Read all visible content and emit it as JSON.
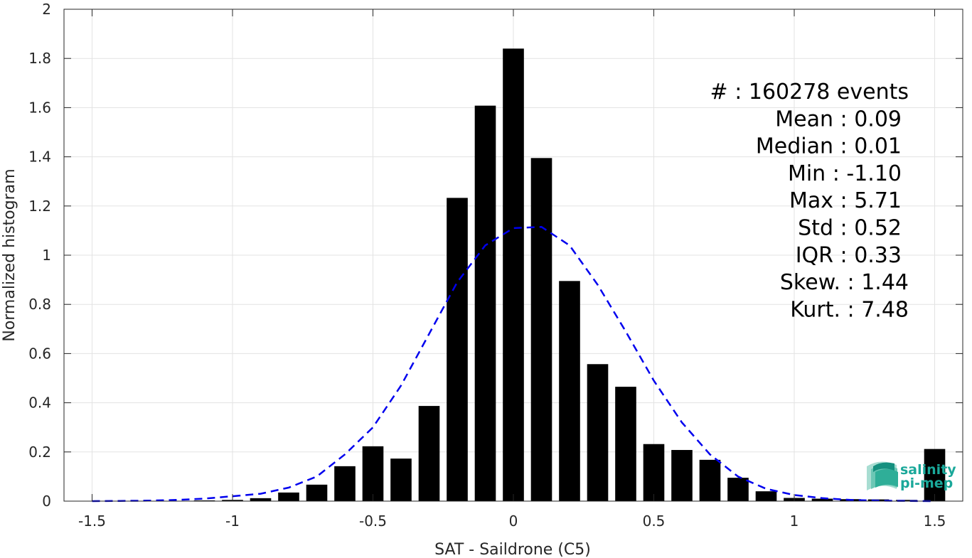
{
  "chart_data": {
    "type": "bar",
    "xlabel": "SAT - Saildrone (C5)",
    "ylabel": "Normalized histogram",
    "xlim": [
      -1.6,
      1.6
    ],
    "ylim": [
      0,
      2
    ],
    "grid": true,
    "xticks": [
      -1.5,
      -1,
      -0.5,
      0,
      0.5,
      1,
      1.5
    ],
    "xtick_labels": [
      "-1.5",
      "-1",
      "-0.5",
      "0",
      "0.5",
      "1",
      "1.5"
    ],
    "yticks": [
      0,
      0.2,
      0.4,
      0.6,
      0.8,
      1,
      1.2,
      1.4,
      1.6,
      1.8,
      2
    ],
    "ytick_labels": [
      "0",
      "0.2",
      "0.4",
      "0.6",
      "0.8",
      "1",
      "1.2",
      "1.4",
      "1.6",
      "1.8",
      "2"
    ],
    "bar_color": "#000000",
    "bins": [
      {
        "x": -1.5,
        "value": 0.0
      },
      {
        "x": -1.4,
        "value": 0.0
      },
      {
        "x": -1.3,
        "value": 0.0
      },
      {
        "x": -1.2,
        "value": 0.0
      },
      {
        "x": -1.1,
        "value": 0.003
      },
      {
        "x": -1.0,
        "value": 0.005
      },
      {
        "x": -0.9,
        "value": 0.012
      },
      {
        "x": -0.8,
        "value": 0.035
      },
      {
        "x": -0.7,
        "value": 0.067
      },
      {
        "x": -0.6,
        "value": 0.142
      },
      {
        "x": -0.5,
        "value": 0.223
      },
      {
        "x": -0.4,
        "value": 0.173
      },
      {
        "x": -0.3,
        "value": 0.387
      },
      {
        "x": -0.2,
        "value": 1.233
      },
      {
        "x": -0.1,
        "value": 1.608
      },
      {
        "x": 0.0,
        "value": 1.84
      },
      {
        "x": 0.1,
        "value": 1.395
      },
      {
        "x": 0.2,
        "value": 0.895
      },
      {
        "x": 0.3,
        "value": 0.557
      },
      {
        "x": 0.4,
        "value": 0.465
      },
      {
        "x": 0.5,
        "value": 0.232
      },
      {
        "x": 0.6,
        "value": 0.208
      },
      {
        "x": 0.7,
        "value": 0.168
      },
      {
        "x": 0.8,
        "value": 0.095
      },
      {
        "x": 0.9,
        "value": 0.04
      },
      {
        "x": 1.0,
        "value": 0.013
      },
      {
        "x": 1.1,
        "value": 0.01
      },
      {
        "x": 1.2,
        "value": 0.008
      },
      {
        "x": 1.3,
        "value": 0.007
      },
      {
        "x": 1.4,
        "value": 0.005
      },
      {
        "x": 1.5,
        "value": 0.212
      }
    ],
    "series": [
      {
        "type": "line",
        "style": "dashed",
        "color": "#0000ee",
        "x": [
          -1.5,
          -1.4,
          -1.3,
          -1.2,
          -1.1,
          -1.0,
          -0.9,
          -0.8,
          -0.7,
          -0.6,
          -0.5,
          -0.4,
          -0.3,
          -0.2,
          -0.1,
          0.0,
          0.1,
          0.2,
          0.3,
          0.4,
          0.5,
          0.6,
          0.7,
          0.8,
          0.9,
          1.0,
          1.1,
          1.2,
          1.3,
          1.4,
          1.5
        ],
        "y": [
          0.0,
          0.001,
          0.002,
          0.005,
          0.01,
          0.02,
          0.03,
          0.055,
          0.1,
          0.19,
          0.3,
          0.47,
          0.68,
          0.89,
          1.04,
          1.11,
          1.115,
          1.04,
          0.88,
          0.69,
          0.49,
          0.32,
          0.19,
          0.1,
          0.05,
          0.025,
          0.012,
          0.005,
          0.002,
          0.001,
          0.0
        ]
      }
    ],
    "annotations": [
      "#  : 160278 events",
      "Mean : 0.09",
      "Median : 0.01",
      "Min : -1.10",
      "Max : 5.71",
      "Std : 0.52",
      "IQR : 0.33",
      "Skew. : 1.44",
      "Kurt. : 7.48"
    ]
  },
  "logo": {
    "line1": "salinity",
    "line2": "pi-mep",
    "color": "#1aa89a"
  }
}
